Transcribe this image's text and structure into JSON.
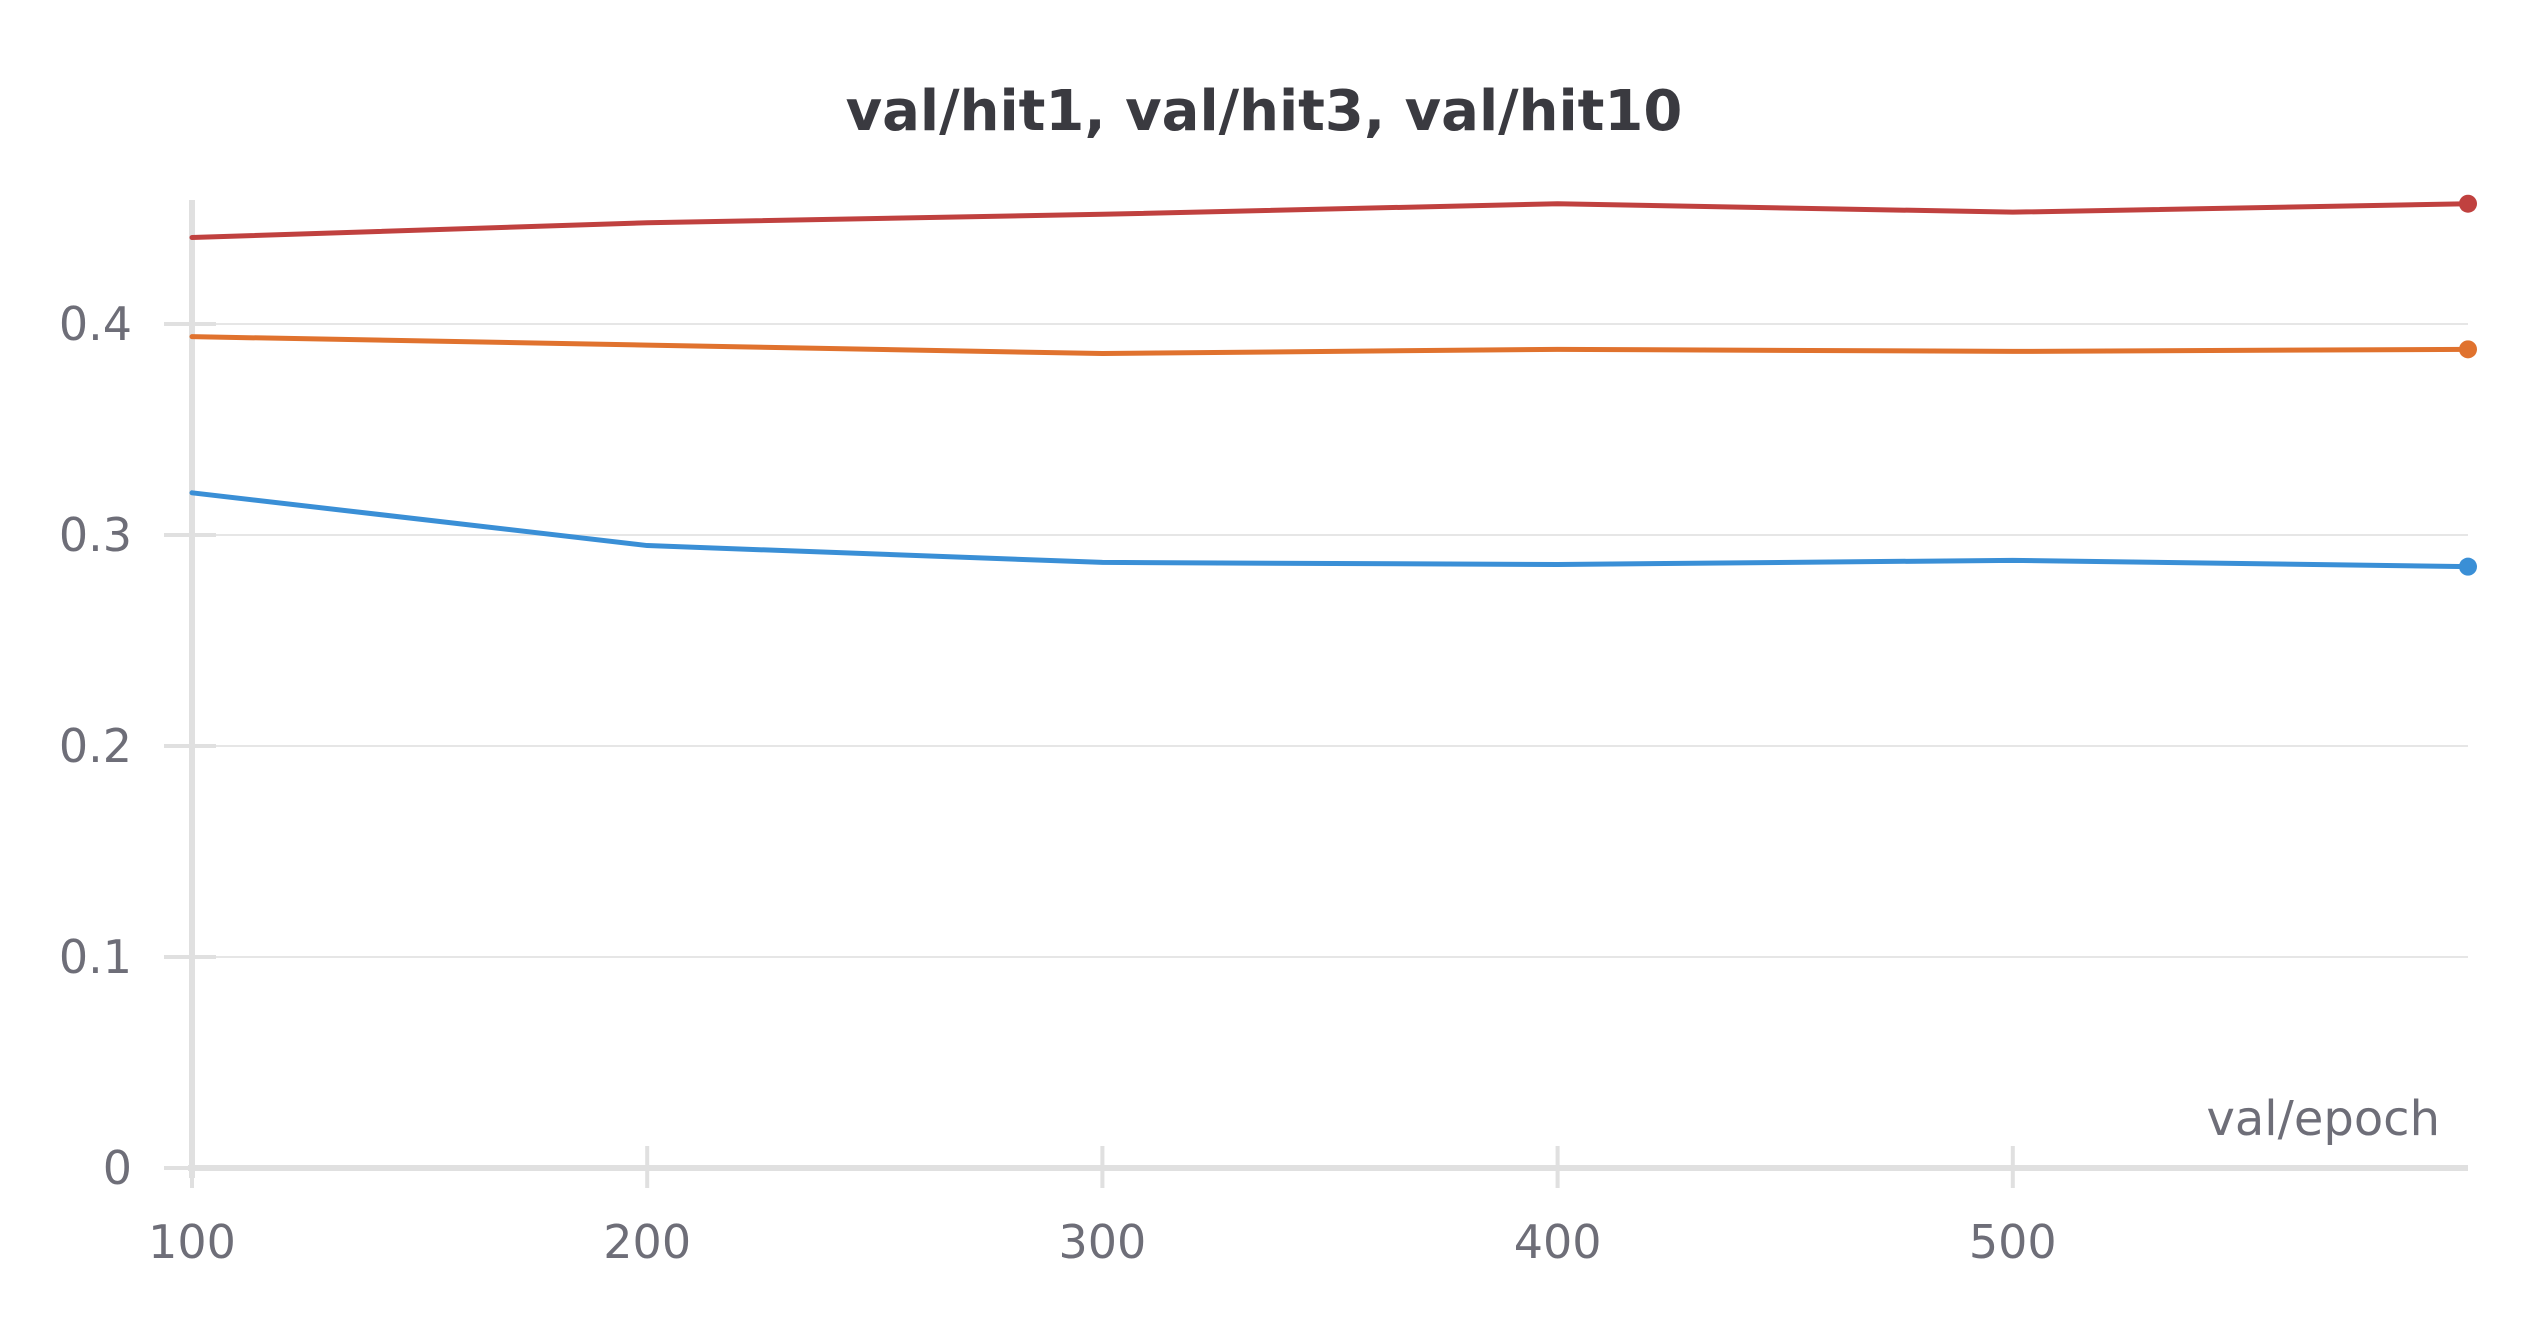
{
  "chart_data": {
    "type": "line",
    "title": "val/hit1, val/hit3, val/hit10",
    "xlabel": "val/epoch",
    "ylabel": "",
    "xlim": [
      100,
      600
    ],
    "ylim": [
      0,
      0.46
    ],
    "x_ticks": [
      100,
      200,
      300,
      400,
      500
    ],
    "y_ticks": [
      0,
      0.1,
      0.2,
      0.3,
      0.4
    ],
    "x_tick_labels": [
      "100",
      "200",
      "300",
      "400",
      "500"
    ],
    "y_tick_labels": [
      "0",
      "0.1",
      "0.2",
      "0.3",
      "0.4"
    ],
    "grid": "horizontal",
    "legend": "none",
    "x": [
      100,
      200,
      300,
      400,
      500,
      600
    ],
    "series": [
      {
        "color": "#c0413f",
        "values": [
          0.441,
          0.448,
          0.452,
          0.457,
          0.453,
          0.457
        ]
      },
      {
        "color": "#e0722e",
        "values": [
          0.394,
          0.39,
          0.386,
          0.388,
          0.387,
          0.388
        ]
      },
      {
        "color": "#3a8fd6",
        "values": [
          0.32,
          0.295,
          0.287,
          0.286,
          0.288,
          0.285
        ]
      }
    ]
  }
}
